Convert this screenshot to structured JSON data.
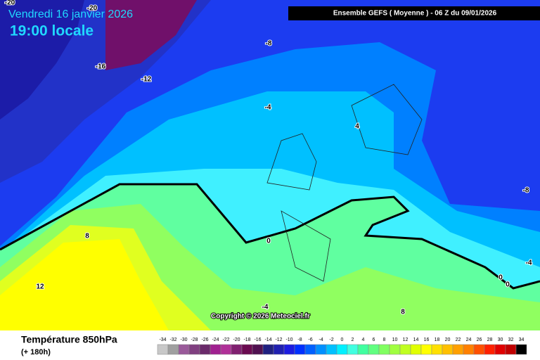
{
  "header": {
    "date": "Vendredi 16 janvier 2026",
    "time": "19:00 locale",
    "model": "Ensemble GEFS  ( Moyenne )  - 06 Z du 09/01/2026"
  },
  "map": {
    "contour_labels": [
      -20,
      -20,
      -16,
      -12,
      -8,
      -4,
      4,
      -8,
      -4,
      0,
      0,
      0,
      8,
      12,
      -4,
      8
    ],
    "copyright": "Copyright © 2026 Meteociel.fr"
  },
  "footer": {
    "title": "Température 850hPa",
    "subtitle": "(+ 180h)"
  },
  "legend": {
    "labels": [
      -34,
      -32,
      -30,
      -28,
      -26,
      -24,
      -22,
      -20,
      -18,
      -16,
      -14,
      -12,
      -10,
      -8,
      -6,
      -4,
      -2,
      0,
      2,
      4,
      6,
      8,
      10,
      12,
      14,
      16,
      18,
      20,
      22,
      24,
      26,
      28,
      30,
      32,
      34
    ],
    "colors": [
      "#c8c8c8",
      "#a0a0a0",
      "#9a5a9a",
      "#804080",
      "#6a2a6a",
      "#a02090",
      "#b03098",
      "#802070",
      "#6a0a50",
      "#501050",
      "#202080",
      "#2020b0",
      "#1c1ce0",
      "#0030ff",
      "#0060ff",
      "#0090ff",
      "#00c0ff",
      "#00f0ff",
      "#40ffe0",
      "#40ffa0",
      "#60ff80",
      "#80ff60",
      "#a0ff40",
      "#c0ff20",
      "#e0ff00",
      "#ffff00",
      "#ffe000",
      "#ffc000",
      "#ffa000",
      "#ff8000",
      "#ff5000",
      "#ff2000",
      "#e00000",
      "#c00000",
      "#000000"
    ]
  }
}
